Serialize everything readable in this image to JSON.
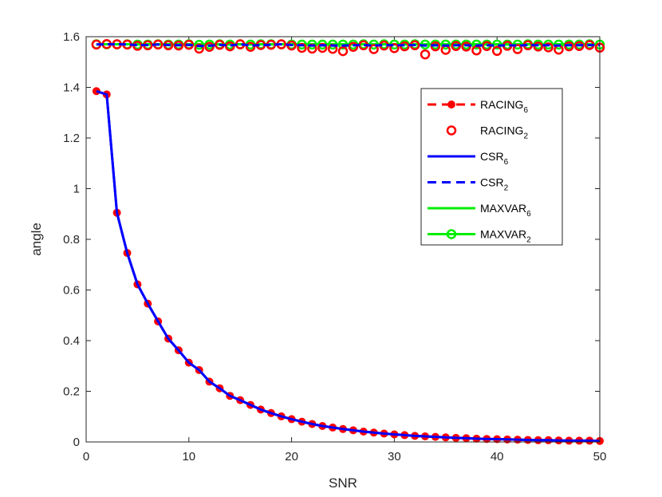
{
  "chart_data": {
    "type": "line",
    "xlabel": "SNR",
    "ylabel": "angle",
    "xlim": [
      0,
      50
    ],
    "ylim": [
      0,
      1.6
    ],
    "xticks": [
      "0",
      "10",
      "20",
      "30",
      "40",
      "50"
    ],
    "yticks": [
      "0",
      "0.2",
      "0.4",
      "0.6",
      "0.8",
      "1",
      "1.2",
      "1.4",
      "1.6"
    ],
    "legend_position": "top-right",
    "x": [
      1,
      2,
      3,
      4,
      5,
      6,
      7,
      8,
      9,
      10,
      11,
      12,
      13,
      14,
      15,
      16,
      17,
      18,
      19,
      20,
      21,
      22,
      23,
      24,
      25,
      26,
      27,
      28,
      29,
      30,
      31,
      32,
      33,
      34,
      35,
      36,
      37,
      38,
      39,
      40,
      41,
      42,
      43,
      44,
      45,
      46,
      47,
      48,
      49,
      50
    ],
    "series": [
      {
        "name": "RACING",
        "name_sub": "6",
        "color": "#ff0000",
        "style": "dashed-dot",
        "values": [
          1.385,
          1.372,
          0.905,
          0.746,
          0.622,
          0.546,
          0.476,
          0.408,
          0.362,
          0.313,
          0.284,
          0.238,
          0.212,
          0.182,
          0.165,
          0.146,
          0.128,
          0.114,
          0.101,
          0.09,
          0.08,
          0.071,
          0.063,
          0.057,
          0.051,
          0.046,
          0.041,
          0.037,
          0.033,
          0.03,
          0.027,
          0.024,
          0.022,
          0.02,
          0.018,
          0.016,
          0.015,
          0.013,
          0.012,
          0.011,
          0.01,
          0.009,
          0.008,
          0.007,
          0.007,
          0.006,
          0.005,
          0.005,
          0.005,
          0.004
        ]
      },
      {
        "name": "RACING",
        "name_sub": "2",
        "color": "#ff0000",
        "style": "circle",
        "values": [
          1.569,
          1.571,
          1.57,
          1.569,
          1.564,
          1.566,
          1.569,
          1.566,
          1.565,
          1.568,
          1.553,
          1.56,
          1.568,
          1.562,
          1.57,
          1.56,
          1.567,
          1.568,
          1.57,
          1.565,
          1.556,
          1.553,
          1.556,
          1.552,
          1.543,
          1.56,
          1.566,
          1.551,
          1.565,
          1.555,
          1.562,
          1.566,
          1.53,
          1.562,
          1.548,
          1.563,
          1.561,
          1.546,
          1.563,
          1.544,
          1.564,
          1.551,
          1.566,
          1.561,
          1.558,
          1.549,
          1.562,
          1.563,
          1.567,
          1.557
        ]
      },
      {
        "name": "CSR",
        "name_sub": "6",
        "color": "#0000ff",
        "style": "solid",
        "values": [
          1.385,
          1.372,
          0.905,
          0.746,
          0.622,
          0.546,
          0.476,
          0.408,
          0.362,
          0.313,
          0.284,
          0.238,
          0.212,
          0.182,
          0.165,
          0.146,
          0.128,
          0.114,
          0.101,
          0.09,
          0.08,
          0.071,
          0.063,
          0.057,
          0.051,
          0.046,
          0.041,
          0.037,
          0.033,
          0.03,
          0.027,
          0.024,
          0.022,
          0.02,
          0.018,
          0.016,
          0.015,
          0.013,
          0.012,
          0.011,
          0.01,
          0.009,
          0.008,
          0.007,
          0.007,
          0.006,
          0.005,
          0.005,
          0.005,
          0.004
        ]
      },
      {
        "name": "CSR",
        "name_sub": "2",
        "color": "#0000ff",
        "style": "dashed",
        "values": [
          1.569,
          1.57,
          1.57,
          1.569,
          1.567,
          1.567,
          1.569,
          1.567,
          1.566,
          1.568,
          1.563,
          1.564,
          1.568,
          1.565,
          1.57,
          1.565,
          1.567,
          1.568,
          1.57,
          1.567,
          1.566,
          1.565,
          1.566,
          1.565,
          1.565,
          1.566,
          1.567,
          1.565,
          1.567,
          1.566,
          1.566,
          1.567,
          1.565,
          1.566,
          1.565,
          1.566,
          1.566,
          1.565,
          1.566,
          1.565,
          1.566,
          1.565,
          1.567,
          1.566,
          1.566,
          1.565,
          1.566,
          1.566,
          1.567,
          1.566
        ]
      },
      {
        "name": "MAXVAR",
        "name_sub": "6",
        "color": "#00ee00",
        "style": "solid",
        "values": [
          1.57,
          1.57,
          1.57,
          1.57,
          1.57,
          1.57,
          1.57,
          1.57,
          1.57,
          1.57,
          1.57,
          1.57,
          1.57,
          1.57,
          1.57,
          1.57,
          1.57,
          1.57,
          1.57,
          1.57,
          1.57,
          1.57,
          1.57,
          1.57,
          1.57,
          1.57,
          1.57,
          1.57,
          1.57,
          1.57,
          1.57,
          1.57,
          1.57,
          1.57,
          1.57,
          1.57,
          1.57,
          1.57,
          1.57,
          1.57,
          1.57,
          1.57,
          1.57,
          1.57,
          1.57,
          1.57,
          1.57,
          1.57,
          1.57,
          1.57
        ]
      },
      {
        "name": "MAXVAR",
        "name_sub": "2",
        "color": "#00ee00",
        "style": "line-circle",
        "values": [
          1.57,
          1.57,
          1.57,
          1.57,
          1.569,
          1.569,
          1.57,
          1.569,
          1.569,
          1.57,
          1.568,
          1.569,
          1.57,
          1.569,
          1.57,
          1.569,
          1.57,
          1.57,
          1.57,
          1.569,
          1.569,
          1.569,
          1.569,
          1.569,
          1.569,
          1.569,
          1.57,
          1.569,
          1.57,
          1.569,
          1.569,
          1.57,
          1.569,
          1.569,
          1.569,
          1.569,
          1.569,
          1.569,
          1.569,
          1.569,
          1.569,
          1.569,
          1.57,
          1.569,
          1.569,
          1.569,
          1.569,
          1.569,
          1.57,
          1.569
        ]
      }
    ]
  }
}
